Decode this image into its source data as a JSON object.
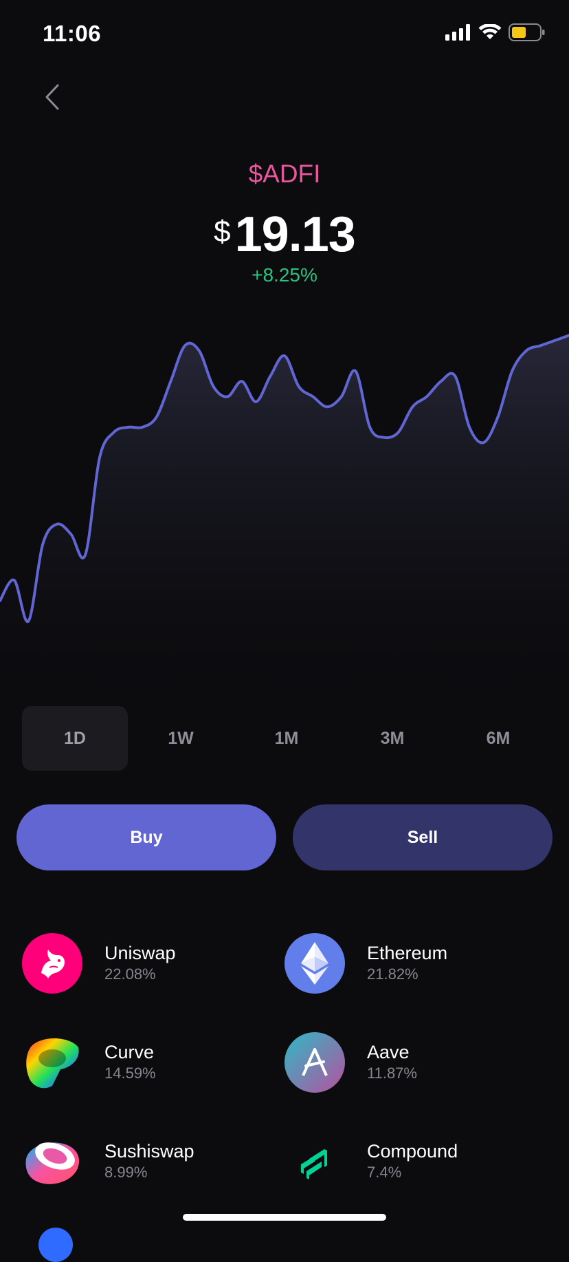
{
  "status_bar": {
    "time": "11:06",
    "battery_color": "#f5c518"
  },
  "nav": {
    "back_icon": "chevron-left-icon"
  },
  "token": {
    "ticker": "$ADFI",
    "currency_symbol": "$",
    "price": "19.13",
    "change": "+8.25%",
    "ticker_color": "#e8579d",
    "change_color": "#2ec27e"
  },
  "chart_data": {
    "type": "area",
    "title": "",
    "line_color": "#6166d3",
    "grid": false,
    "x": [
      0,
      1,
      2,
      3,
      4,
      5,
      6,
      7,
      8,
      9,
      10,
      11,
      12,
      13,
      14,
      15,
      16,
      17,
      18,
      19,
      20,
      21,
      22,
      23,
      24,
      25,
      26,
      27,
      28,
      29,
      30,
      31,
      32,
      33,
      34,
      35,
      36,
      37,
      38,
      39,
      40
    ],
    "values": [
      2.0,
      2.4,
      1.6,
      3.1,
      3.5,
      3.3,
      2.9,
      4.8,
      5.3,
      5.4,
      5.4,
      5.6,
      6.3,
      7.0,
      6.9,
      6.2,
      6.0,
      6.3,
      5.9,
      6.4,
      6.8,
      6.2,
      6.0,
      5.8,
      6.0,
      6.5,
      5.4,
      5.2,
      5.3,
      5.8,
      6.0,
      6.3,
      6.4,
      5.4,
      5.1,
      5.6,
      6.5,
      6.9,
      7.0,
      7.1,
      7.2
    ],
    "ylim": [
      1.5,
      7.3
    ]
  },
  "range_tabs": [
    {
      "label": "1D",
      "active": true
    },
    {
      "label": "1W",
      "active": false
    },
    {
      "label": "1M",
      "active": false
    },
    {
      "label": "3M",
      "active": false
    },
    {
      "label": "6M",
      "active": false
    }
  ],
  "actions": {
    "buy": "Buy",
    "sell": "Sell"
  },
  "assets": [
    {
      "name": "Uniswap",
      "pct": "22.08%",
      "icon": "uniswap-icon",
      "color": "#ff007a"
    },
    {
      "name": "Ethereum",
      "pct": "21.82%",
      "icon": "ethereum-icon",
      "color": "#627eea"
    },
    {
      "name": "Curve",
      "pct": "14.59%",
      "icon": "curve-icon",
      "color": "#ff3b3b"
    },
    {
      "name": "Aave",
      "pct": "11.87%",
      "icon": "aave-icon",
      "color": "#b6509e"
    },
    {
      "name": "Sushiswap",
      "pct": "8.99%",
      "icon": "sushiswap-icon",
      "color": "#fa52a0"
    },
    {
      "name": "Compound",
      "pct": "7.4%",
      "icon": "compound-icon",
      "color": "#00d395"
    }
  ]
}
